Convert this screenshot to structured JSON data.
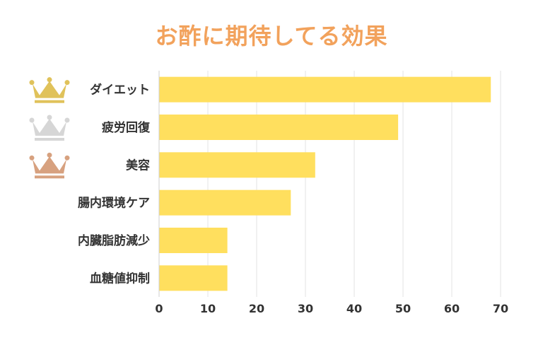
{
  "title": "お酢に期待してる効果",
  "colors": {
    "title": "#f2a25c",
    "bar": "#ffdf5e",
    "gold": "#e0c25a",
    "silver": "#d6d6d6",
    "bronze": "#d7a17f",
    "grid": "#e3e3e3",
    "text": "#333333"
  },
  "crowns": [
    "gold-crown-icon",
    "silver-crown-icon",
    "bronze-crown-icon"
  ],
  "chart_data": {
    "type": "bar",
    "orientation": "horizontal",
    "title": "お酢に期待してる効果",
    "categories": [
      "ダイエット",
      "疲労回復",
      "美容",
      "腸内環境ケア",
      "内臓脂肪減少",
      "血糖値抑制"
    ],
    "values": [
      68,
      49,
      32,
      27,
      14,
      14
    ],
    "xlim": [
      0,
      70
    ],
    "xticks": [
      0,
      10,
      20,
      30,
      40,
      50,
      60,
      70
    ],
    "xlabel": "",
    "ylabel": "",
    "grid": "vertical"
  }
}
